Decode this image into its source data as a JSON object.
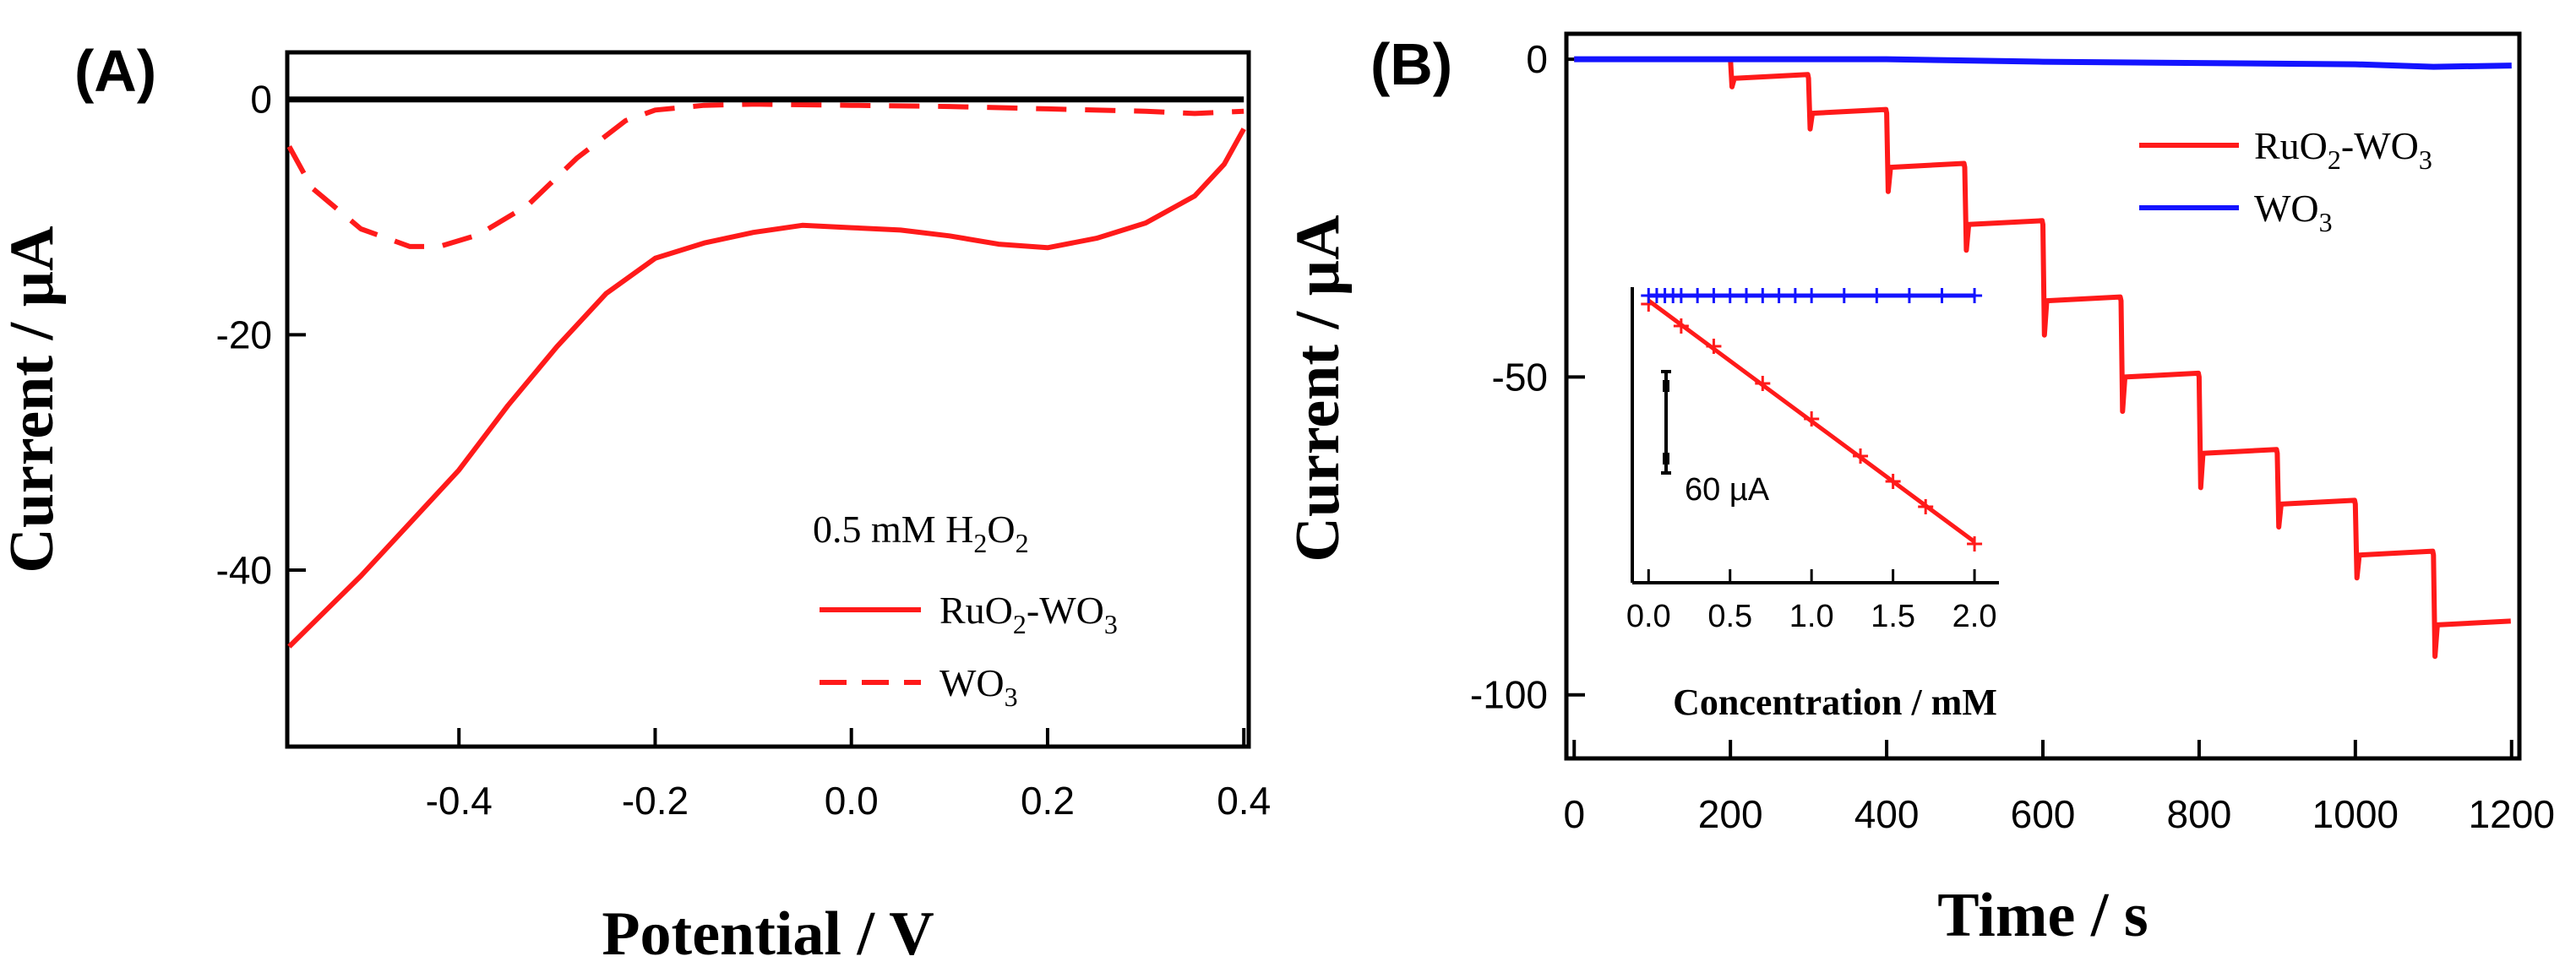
{
  "figure": {
    "panel_a_label": "(A)",
    "panel_b_label": "(B)"
  },
  "colors": {
    "red": "#ff1a1a",
    "blue": "#1414ff",
    "black": "#000000"
  },
  "chart_data": [
    {
      "id": "A",
      "type": "line",
      "title": "",
      "xlabel": "Potential / V",
      "ylabel": "Current / µA",
      "xlim": [
        -0.575,
        0.405
      ],
      "ylim": [
        -55,
        4
      ],
      "xticks": [
        -0.4,
        -0.2,
        0.0,
        0.2,
        0.4
      ],
      "xtick_labels": [
        "-0.4",
        "-0.2",
        "0.0",
        "0.2",
        "0.4"
      ],
      "yticks": [
        0,
        -20,
        -40
      ],
      "ytick_labels": [
        "0",
        "-20",
        "-40"
      ],
      "legend": {
        "placement": "bottom-right",
        "title": "0.5 mM H",
        "title_sub": "2",
        "title_mid": "O",
        "title_sub2": "2",
        "entries": [
          {
            "name": "RuO2-WO3",
            "parts": [
              "RuO",
              "2",
              "-WO",
              "3"
            ],
            "style": "solid",
            "color": "#ff1a1a"
          },
          {
            "name": "WO3",
            "parts": [
              "WO",
              "3"
            ],
            "style": "dashed",
            "color": "#ff1a1a"
          }
        ]
      },
      "series": [
        {
          "name": "RuO2-WO3",
          "style": "solid",
          "color": "#ff1a1a",
          "x": [
            -0.573,
            -0.5,
            -0.45,
            -0.4,
            -0.35,
            -0.3,
            -0.25,
            -0.2,
            -0.15,
            -0.1,
            -0.05,
            0.0,
            0.05,
            0.1,
            0.15,
            0.2,
            0.25,
            0.3,
            0.35,
            0.38,
            0.4
          ],
          "y": [
            -46.5,
            -40.5,
            -36.0,
            -31.5,
            -26.0,
            -21.0,
            -16.5,
            -13.5,
            -12.2,
            -11.3,
            -10.7,
            -10.9,
            -11.1,
            -11.6,
            -12.3,
            -12.6,
            -11.8,
            -10.5,
            -8.2,
            -5.5,
            -2.5
          ]
        },
        {
          "name": "WO3",
          "style": "dashed",
          "color": "#ff1a1a",
          "x": [
            -0.573,
            -0.55,
            -0.5,
            -0.45,
            -0.42,
            -0.38,
            -0.33,
            -0.28,
            -0.23,
            -0.2,
            -0.15,
            -0.1,
            0.0,
            0.1,
            0.2,
            0.3,
            0.35,
            0.4
          ],
          "y": [
            -4.0,
            -7.5,
            -11.0,
            -12.5,
            -12.5,
            -11.5,
            -9.0,
            -5.0,
            -1.8,
            -0.9,
            -0.5,
            -0.4,
            -0.5,
            -0.6,
            -0.8,
            -1.0,
            -1.2,
            -1.0
          ]
        },
        {
          "name": "baseline",
          "style": "solid",
          "color": "#000000",
          "x": [
            -0.573,
            0.4
          ],
          "y": [
            0,
            0
          ]
        }
      ]
    },
    {
      "id": "B",
      "type": "line",
      "title": "",
      "xlabel": "Time / s",
      "ylabel": "Current / µA",
      "xlim": [
        -10,
        1210
      ],
      "ylim": [
        -110,
        4
      ],
      "xticks": [
        0,
        200,
        400,
        600,
        800,
        1000,
        1200
      ],
      "xtick_labels": [
        "0",
        "200",
        "400",
        "600",
        "800",
        "1000",
        "1200"
      ],
      "yticks": [
        0,
        -50,
        -100
      ],
      "ytick_labels": [
        "0",
        "-50",
        "-100"
      ],
      "legend": {
        "placement": "top-right",
        "entries": [
          {
            "name": "RuO2-WO3",
            "parts": [
              "RuO",
              "2",
              "-WO",
              "3"
            ],
            "color": "#ff1a1a"
          },
          {
            "name": "WO3",
            "parts": [
              "WO",
              "3"
            ],
            "color": "#1414ff"
          }
        ]
      },
      "series": [
        {
          "name": "RuO2-WO3",
          "color": "#ff1a1a",
          "steps": [
            {
              "t": 0,
              "y": 0
            },
            {
              "t": 200,
              "y": -3
            },
            {
              "t": 300,
              "y": -8.5
            },
            {
              "t": 400,
              "y": -17
            },
            {
              "t": 500,
              "y": -26
            },
            {
              "t": 600,
              "y": -38
            },
            {
              "t": 700,
              "y": -50
            },
            {
              "t": 800,
              "y": -62
            },
            {
              "t": 900,
              "y": -70
            },
            {
              "t": 1000,
              "y": -78
            },
            {
              "t": 1100,
              "y": -89
            }
          ],
          "t_end": 1200
        },
        {
          "name": "WO3",
          "color": "#1414ff",
          "x": [
            0,
            200,
            400,
            600,
            800,
            1000,
            1100,
            1200
          ],
          "y": [
            0,
            0,
            0,
            -0.4,
            -0.6,
            -0.8,
            -1.2,
            -1.0
          ]
        }
      ],
      "inset": {
        "type": "scatter",
        "xlabel": "Concentration / mM",
        "xlim": [
          -0.1,
          2.15
        ],
        "ylim": [
          -170,
          5
        ],
        "xticks": [
          0.0,
          0.5,
          1.0,
          1.5,
          2.0
        ],
        "xtick_labels": [
          "0.0",
          "0.5",
          "1.0",
          "1.5",
          "2.0"
        ],
        "scale_bar_label": "60 µA",
        "scale_bar_value": 60,
        "series": [
          {
            "name": "RuO2-WO3",
            "color": "#ff1a1a",
            "x": [
              0.0,
              0.2,
              0.4,
              0.7,
              1.0,
              1.3,
              1.5,
              1.7,
              2.0
            ],
            "y": [
              -5,
              -18,
              -30,
              -52,
              -73,
              -95,
              -110,
              -125,
              -147
            ]
          },
          {
            "name": "WO3",
            "color": "#1414ff",
            "x": [
              0.0,
              0.05,
              0.1,
              0.15,
              0.2,
              0.3,
              0.4,
              0.5,
              0.6,
              0.7,
              0.8,
              0.9,
              1.0,
              1.2,
              1.4,
              1.6,
              1.8,
              2.0
            ],
            "y": [
              0,
              0,
              0,
              0,
              0,
              0,
              0,
              0,
              0,
              0,
              0,
              0,
              0,
              0,
              0,
              0,
              0,
              0
            ]
          }
        ]
      }
    }
  ]
}
